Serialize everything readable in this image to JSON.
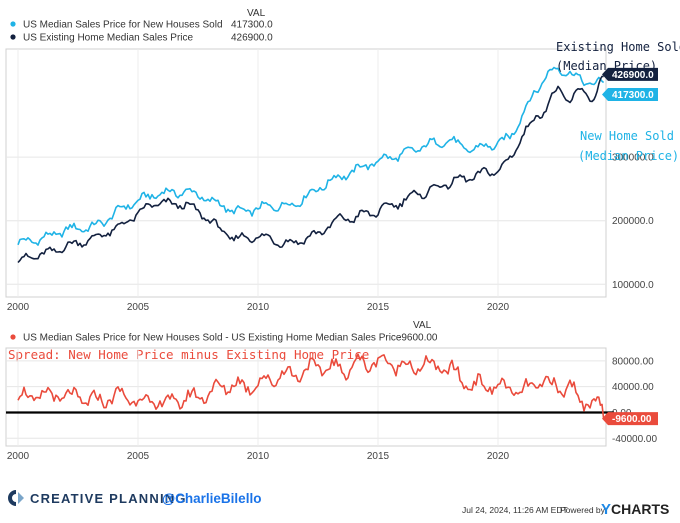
{
  "colors": {
    "new_homes": "#1fb3e6",
    "existing_homes": "#13213f",
    "spread": "#ea4b3c",
    "annotation_existing": "#13213f",
    "annotation_new": "#1fb3e6",
    "annotation_spread": "#ea4b3c",
    "creative_planning": "#1e3a5f",
    "handle": "#1a73e8"
  },
  "top_legend": {
    "val_header": "VAL",
    "items": [
      {
        "label": "US Median Sales Price for New Houses Sold",
        "value": "417300.0",
        "color_key": "new_homes"
      },
      {
        "label": "US Existing Home Median Sales Price",
        "value": "426900.0",
        "color_key": "existing_homes"
      }
    ]
  },
  "bottom_legend": {
    "val_header": "VAL",
    "items": [
      {
        "label": "US Median Sales Price for New Houses Sold - US Existing Home Median Sales Price",
        "value": "-9600.00",
        "color_key": "spread"
      }
    ]
  },
  "annotations": {
    "existing_line1": "Existing Home Sold",
    "existing_line2": "(Median Price)",
    "new_line1": "New Home Sold",
    "new_line2": "(Median Price)",
    "spread": "Spread: New Home Price minus Existing Home Price"
  },
  "footer": {
    "brand": "CREATIVE PLANNING",
    "handle": "@CharlieBilello",
    "timestamp": "Jul 24, 2024, 11:26 AM EDT",
    "powered_by": "Powered by",
    "ycharts": "CHARTS",
    "ycharts_y": "Y"
  },
  "chart_data": [
    {
      "type": "line",
      "title": "",
      "xlabel": "",
      "ylabel": "",
      "xlim": [
        1999.5,
        2024.5
      ],
      "ylim": [
        80000,
        470000
      ],
      "x_ticks": [
        2000,
        2005,
        2010,
        2015,
        2020
      ],
      "x_tick_labels": [
        "2000",
        "2005",
        "2010",
        "2015",
        "2020"
      ],
      "y_ticks": [
        100000,
        200000,
        300000
      ],
      "y_tick_labels": [
        "100000.0",
        "200000.0",
        "300000.0"
      ],
      "grid": true,
      "series": [
        {
          "name": "US Median Sales Price for New Houses Sold",
          "color_key": "new_homes",
          "last_value_label": "417300.0",
          "points": [
            [
              2000,
              165000
            ],
            [
              2000.5,
              168000
            ],
            [
              2001,
              172000
            ],
            [
              2001.5,
              178000
            ],
            [
              2002,
              186000
            ],
            [
              2002.5,
              188000
            ],
            [
              2003,
              190000
            ],
            [
              2003.5,
              195000
            ],
            [
              2004,
              212000
            ],
            [
              2004.5,
              222000
            ],
            [
              2005,
              232000
            ],
            [
              2005.5,
              238000
            ],
            [
              2006,
              245000
            ],
            [
              2006.5,
              243000
            ],
            [
              2007,
              247000
            ],
            [
              2007.5,
              240000
            ],
            [
              2008,
              232000
            ],
            [
              2008.5,
              224000
            ],
            [
              2009,
              215000
            ],
            [
              2009.5,
              214000
            ],
            [
              2010,
              220000
            ],
            [
              2010.5,
              222000
            ],
            [
              2011,
              225000
            ],
            [
              2011.5,
              224000
            ],
            [
              2012,
              240000
            ],
            [
              2012.5,
              248000
            ],
            [
              2013,
              265000
            ],
            [
              2013.5,
              268000
            ],
            [
              2014,
              280000
            ],
            [
              2014.5,
              285000
            ],
            [
              2015,
              296000
            ],
            [
              2015.5,
              298000
            ],
            [
              2016,
              305000
            ],
            [
              2016.5,
              310000
            ],
            [
              2017,
              320000
            ],
            [
              2017.5,
              322000
            ],
            [
              2018,
              328000
            ],
            [
              2018.5,
              315000
            ],
            [
              2019,
              312000
            ],
            [
              2019.5,
              318000
            ],
            [
              2020,
              320000
            ],
            [
              2020.5,
              332000
            ],
            [
              2021,
              365000
            ],
            [
              2021.5,
              400000
            ],
            [
              2022,
              428000
            ],
            [
              2022.5,
              440000
            ],
            [
              2023,
              432000
            ],
            [
              2023.5,
              420000
            ],
            [
              2024,
              416000
            ],
            [
              2024.4,
              417300
            ]
          ]
        },
        {
          "name": "US Existing Home Median Sales Price",
          "color_key": "existing_homes",
          "last_value_label": "426900.0",
          "points": [
            [
              2000,
              138000
            ],
            [
              2000.5,
              142000
            ],
            [
              2001,
              147000
            ],
            [
              2001.5,
              152000
            ],
            [
              2002,
              160000
            ],
            [
              2002.5,
              165000
            ],
            [
              2003,
              170000
            ],
            [
              2003.5,
              178000
            ],
            [
              2004,
              185000
            ],
            [
              2004.5,
              198000
            ],
            [
              2005,
              210000
            ],
            [
              2005.5,
              225000
            ],
            [
              2006,
              228000
            ],
            [
              2006.5,
              226000
            ],
            [
              2007,
              225000
            ],
            [
              2007.5,
              215000
            ],
            [
              2008,
              200000
            ],
            [
              2008.5,
              185000
            ],
            [
              2009,
              170000
            ],
            [
              2009.5,
              176000
            ],
            [
              2010,
              172000
            ],
            [
              2010.5,
              175000
            ],
            [
              2011,
              162000
            ],
            [
              2011.5,
              168000
            ],
            [
              2012,
              170000
            ],
            [
              2012.5,
              182000
            ],
            [
              2013,
              190000
            ],
            [
              2013.5,
              208000
            ],
            [
              2014,
              200000
            ],
            [
              2014.5,
              215000
            ],
            [
              2015,
              210000
            ],
            [
              2015.5,
              228000
            ],
            [
              2016,
              226000
            ],
            [
              2016.5,
              245000
            ],
            [
              2017,
              240000
            ],
            [
              2017.5,
              258000
            ],
            [
              2018,
              255000
            ],
            [
              2018.5,
              270000
            ],
            [
              2019,
              265000
            ],
            [
              2019.5,
              280000
            ],
            [
              2020,
              275000
            ],
            [
              2020.5,
              300000
            ],
            [
              2021,
              330000
            ],
            [
              2021.5,
              362000
            ],
            [
              2022,
              375000
            ],
            [
              2022.5,
              410000
            ],
            [
              2023,
              385000
            ],
            [
              2023.5,
              410000
            ],
            [
              2024,
              388000
            ],
            [
              2024.4,
              426900
            ]
          ]
        }
      ]
    },
    {
      "type": "line",
      "title": "",
      "xlabel": "",
      "ylabel": "",
      "xlim": [
        1999.5,
        2024.5
      ],
      "ylim": [
        -52000,
        100000
      ],
      "x_ticks": [
        2000,
        2005,
        2010,
        2015,
        2020
      ],
      "x_tick_labels": [
        "2000",
        "2005",
        "2010",
        "2015",
        "2020"
      ],
      "y_ticks": [
        -40000,
        0,
        40000,
        80000
      ],
      "y_tick_labels": [
        "-40000.00",
        "0.00",
        "40000.00",
        "80000.00"
      ],
      "zero_line": true,
      "grid": true,
      "series": [
        {
          "name": "US Median Sales Price for New Houses Sold - US Existing Home Median Sales Price",
          "color_key": "spread",
          "last_value_label": "-9600.00",
          "points": [
            [
              2000,
              26000
            ],
            [
              2000.5,
              23000
            ],
            [
              2001,
              27000
            ],
            [
              2001.5,
              25000
            ],
            [
              2002,
              26000
            ],
            [
              2002.5,
              22000
            ],
            [
              2003,
              20000
            ],
            [
              2003.5,
              17000
            ],
            [
              2004,
              27000
            ],
            [
              2004.5,
              24000
            ],
            [
              2005,
              22000
            ],
            [
              2005.5,
              13000
            ],
            [
              2006,
              17000
            ],
            [
              2006.5,
              17000
            ],
            [
              2007,
              22000
            ],
            [
              2007.5,
              25000
            ],
            [
              2008,
              32000
            ],
            [
              2008.5,
              39000
            ],
            [
              2009,
              45000
            ],
            [
              2009.5,
              38000
            ],
            [
              2010,
              48000
            ],
            [
              2010.5,
              47000
            ],
            [
              2011,
              63000
            ],
            [
              2011.5,
              56000
            ],
            [
              2012,
              70000
            ],
            [
              2012.5,
              66000
            ],
            [
              2013,
              75000
            ],
            [
              2013.5,
              60000
            ],
            [
              2014,
              80000
            ],
            [
              2014.5,
              70000
            ],
            [
              2015,
              86000
            ],
            [
              2015.5,
              70000
            ],
            [
              2016,
              79000
            ],
            [
              2016.5,
              65000
            ],
            [
              2017,
              80000
            ],
            [
              2017.5,
              64000
            ],
            [
              2018,
              73000
            ],
            [
              2018.5,
              45000
            ],
            [
              2019,
              47000
            ],
            [
              2019.5,
              38000
            ],
            [
              2020,
              45000
            ],
            [
              2020.5,
              32000
            ],
            [
              2021,
              35000
            ],
            [
              2021.5,
              38000
            ],
            [
              2022,
              53000
            ],
            [
              2022.5,
              30000
            ],
            [
              2023,
              47000
            ],
            [
              2023.5,
              10000
            ],
            [
              2024,
              28000
            ],
            [
              2024.4,
              -9600
            ]
          ]
        }
      ]
    }
  ]
}
